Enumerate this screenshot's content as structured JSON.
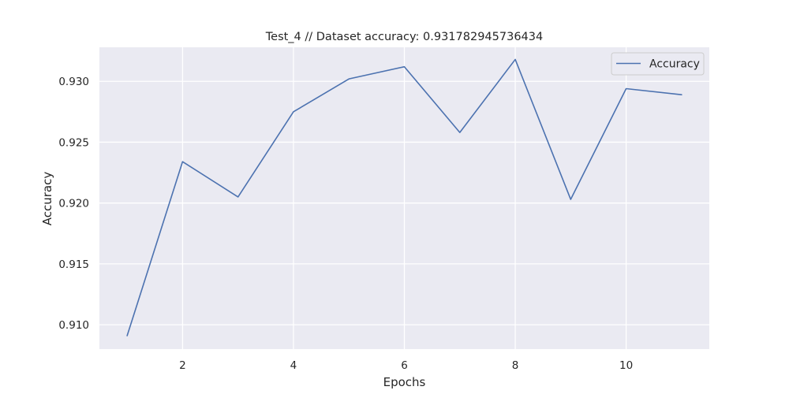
{
  "chart_data": {
    "type": "line",
    "title": "Test_4 // Dataset accuracy: 0.931782945736434",
    "xlabel": "Epochs",
    "ylabel": "Accuracy",
    "x": [
      1,
      2,
      3,
      4,
      5,
      6,
      7,
      8,
      9,
      10,
      11
    ],
    "series": [
      {
        "name": "Accuracy",
        "color": "#4c72b0",
        "values": [
          0.9091,
          0.9234,
          0.9205,
          0.9275,
          0.9302,
          0.9312,
          0.9258,
          0.9318,
          0.9203,
          0.9294,
          0.9289
        ]
      }
    ],
    "xlim": [
      0.5,
      11.5
    ],
    "ylim": [
      0.908,
      0.9328
    ],
    "xticks": [
      2,
      4,
      6,
      8,
      10
    ],
    "yticks": [
      "0.910",
      "0.915",
      "0.920",
      "0.925",
      "0.930"
    ],
    "grid": true,
    "legend": "top-right",
    "background": "#eaeaf2",
    "grid_color": "#ffffff"
  }
}
